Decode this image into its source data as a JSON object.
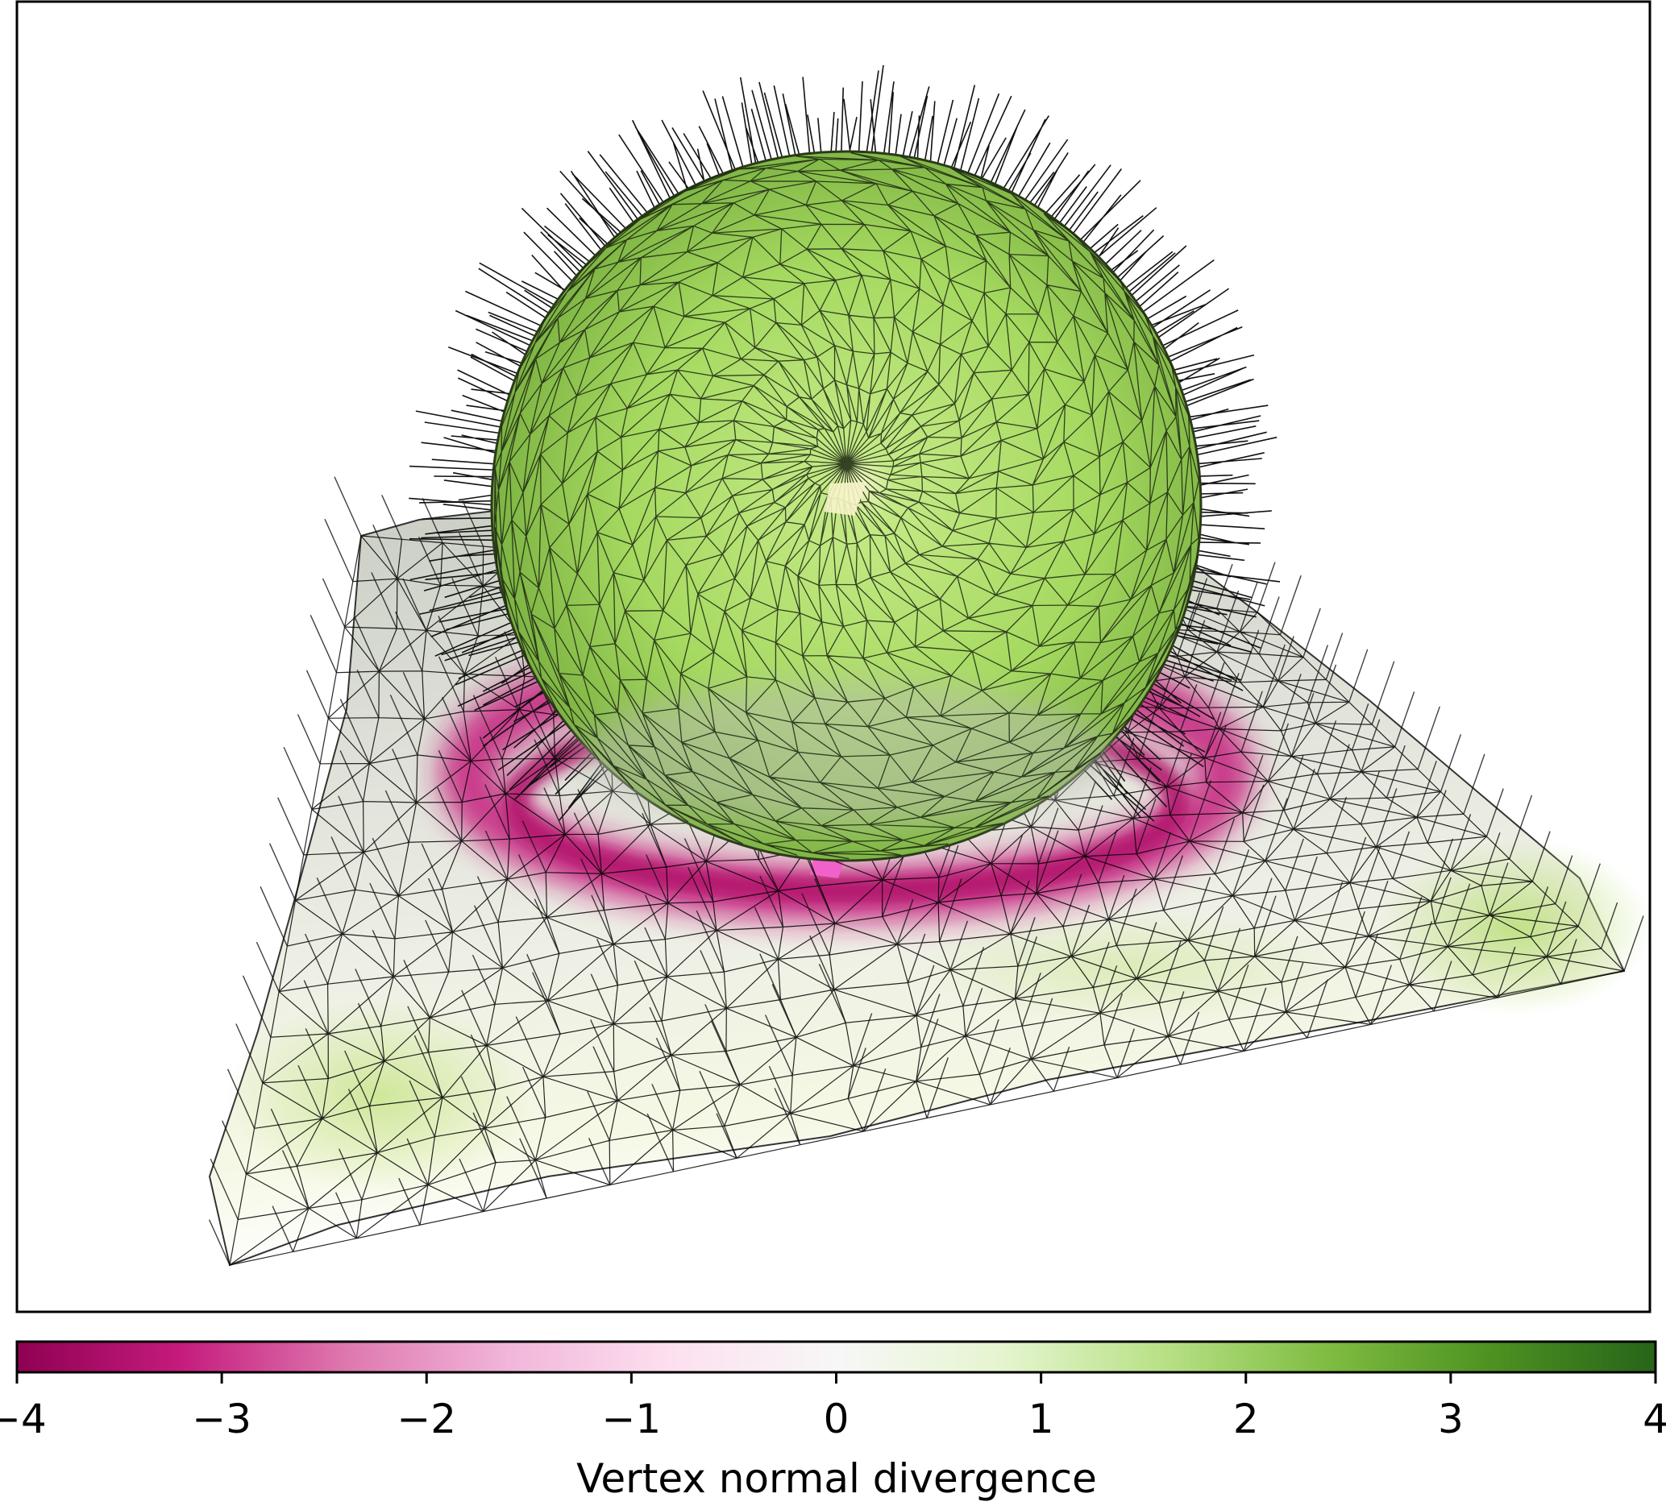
{
  "colorbar": {
    "label": "Vertex normal divergence",
    "min": -4,
    "max": 4,
    "ticks": [
      -4,
      -3,
      -2,
      -1,
      0,
      1,
      2,
      3,
      4
    ],
    "tick_labels": [
      "−4",
      "−3",
      "−2",
      "−1",
      "0",
      "1",
      "2",
      "3",
      "4"
    ],
    "colormap": "PiYG",
    "stops": [
      "#8e0152",
      "#c51b7d",
      "#de77ae",
      "#f1b6da",
      "#fde0ef",
      "#f7f7f7",
      "#e6f5d0",
      "#b8e186",
      "#7fbc41",
      "#4d9221",
      "#276419"
    ]
  },
  "scene": {
    "objects": [
      "sphere",
      "plane"
    ],
    "sphere_color": "#a8dc66",
    "plane_color": "#eef0e6",
    "ring_color": "#c51b7d",
    "wire_color": "#000000"
  }
}
